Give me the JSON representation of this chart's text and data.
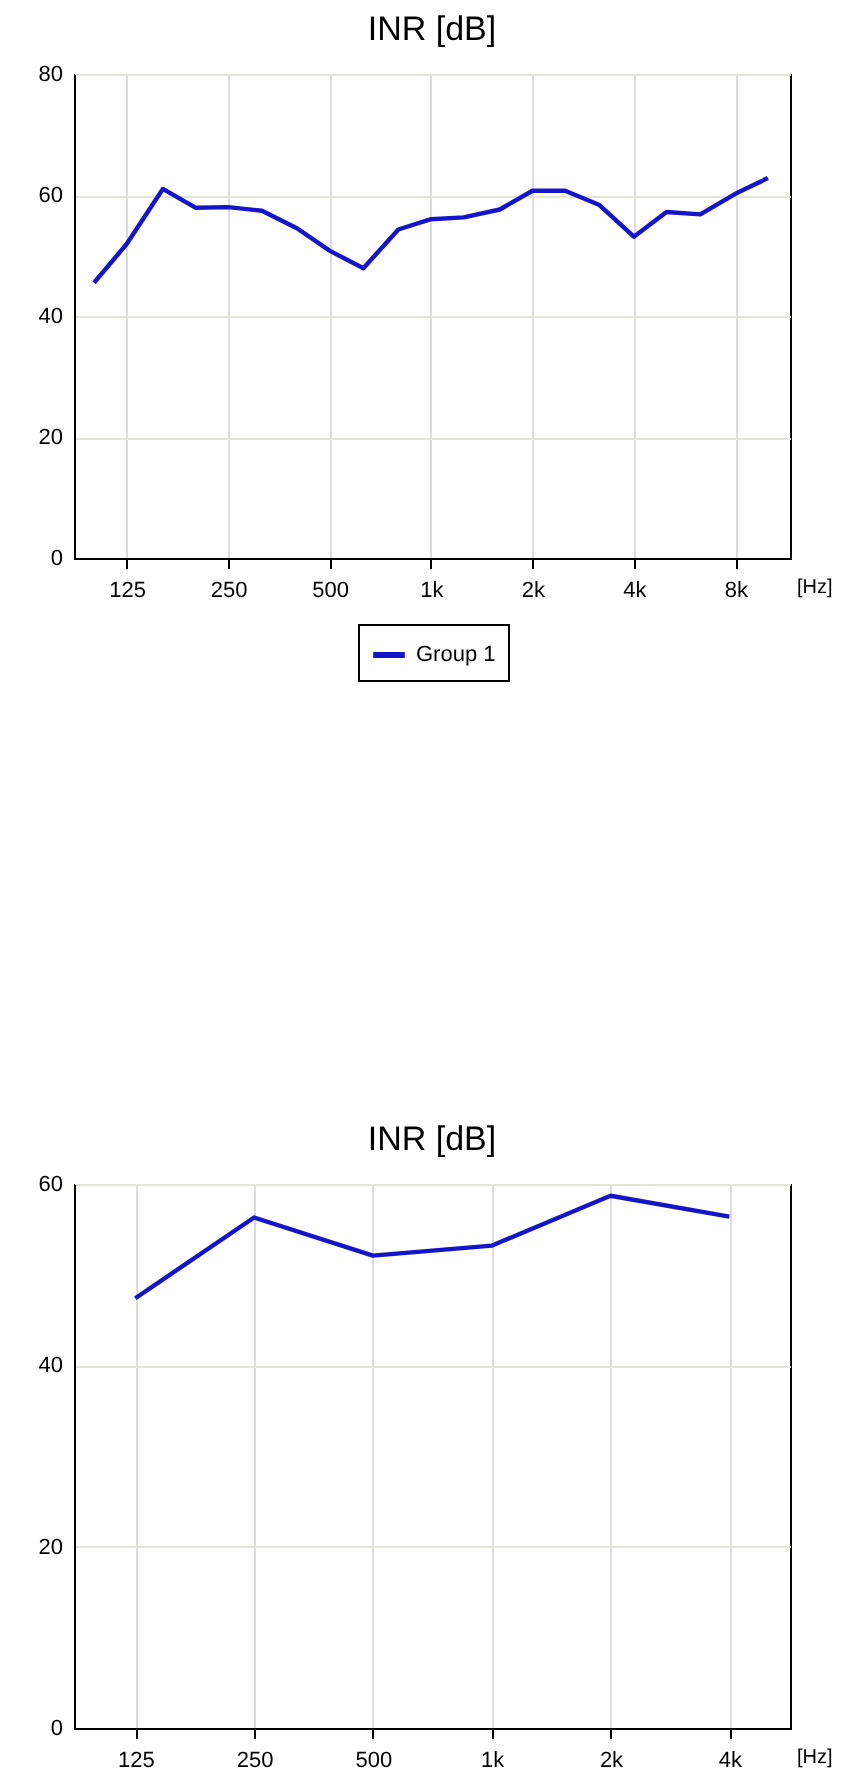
{
  "chart_data": [
    {
      "type": "line",
      "title": "INR [dB]",
      "xlabel": "[Hz]",
      "x": [
        100,
        125,
        160,
        200,
        250,
        315,
        400,
        500,
        630,
        800,
        1000,
        1250,
        1600,
        2000,
        2500,
        3150,
        4000,
        5000,
        6300,
        8000,
        10000
      ],
      "series": [
        {
          "name": "Group 1",
          "color": "#1414c8",
          "values": [
            45.5,
            51.9,
            61,
            57.9,
            58,
            57.4,
            54.5,
            50.8,
            47.9,
            54.3,
            56,
            56.3,
            57.6,
            60.7,
            60.7,
            58.4,
            53.1,
            57.2,
            56.8,
            60.2,
            62.8
          ]
        }
      ],
      "log": "x",
      "xlim": [
        87.2,
        11627
      ],
      "xticks": [
        125,
        250,
        500,
        {
          "value": 1000,
          "label": "1k"
        },
        {
          "value": 2000,
          "label": "2k"
        },
        {
          "value": 4000,
          "label": "4k"
        },
        {
          "value": 8000,
          "label": "8k"
        }
      ],
      "ylim": [
        0,
        80
      ],
      "yticks": [
        0,
        20,
        40,
        60,
        80
      ],
      "grid": true,
      "legend": "bottom",
      "marker": "none"
    },
    {
      "type": "line",
      "title": "INR [dB]",
      "xlabel": "[Hz]",
      "x": [
        125,
        250,
        500,
        1000,
        2000,
        4000
      ],
      "series": [
        {
          "color": "#1414c8",
          "values": [
            47.4,
            56.3,
            52.1,
            53.2,
            58.7,
            56.4
          ]
        }
      ],
      "log": "x",
      "xlim": [
        87.4,
        5700
      ],
      "xticks": [
        125,
        250,
        500,
        {
          "value": 1000,
          "label": "1k"
        },
        {
          "value": 2000,
          "label": "2k"
        },
        {
          "value": 4000,
          "label": "4k"
        }
      ],
      "ylim": [
        0,
        60
      ],
      "yticks": [
        0,
        20,
        40,
        60
      ],
      "grid": true,
      "marker": "none"
    }
  ]
}
